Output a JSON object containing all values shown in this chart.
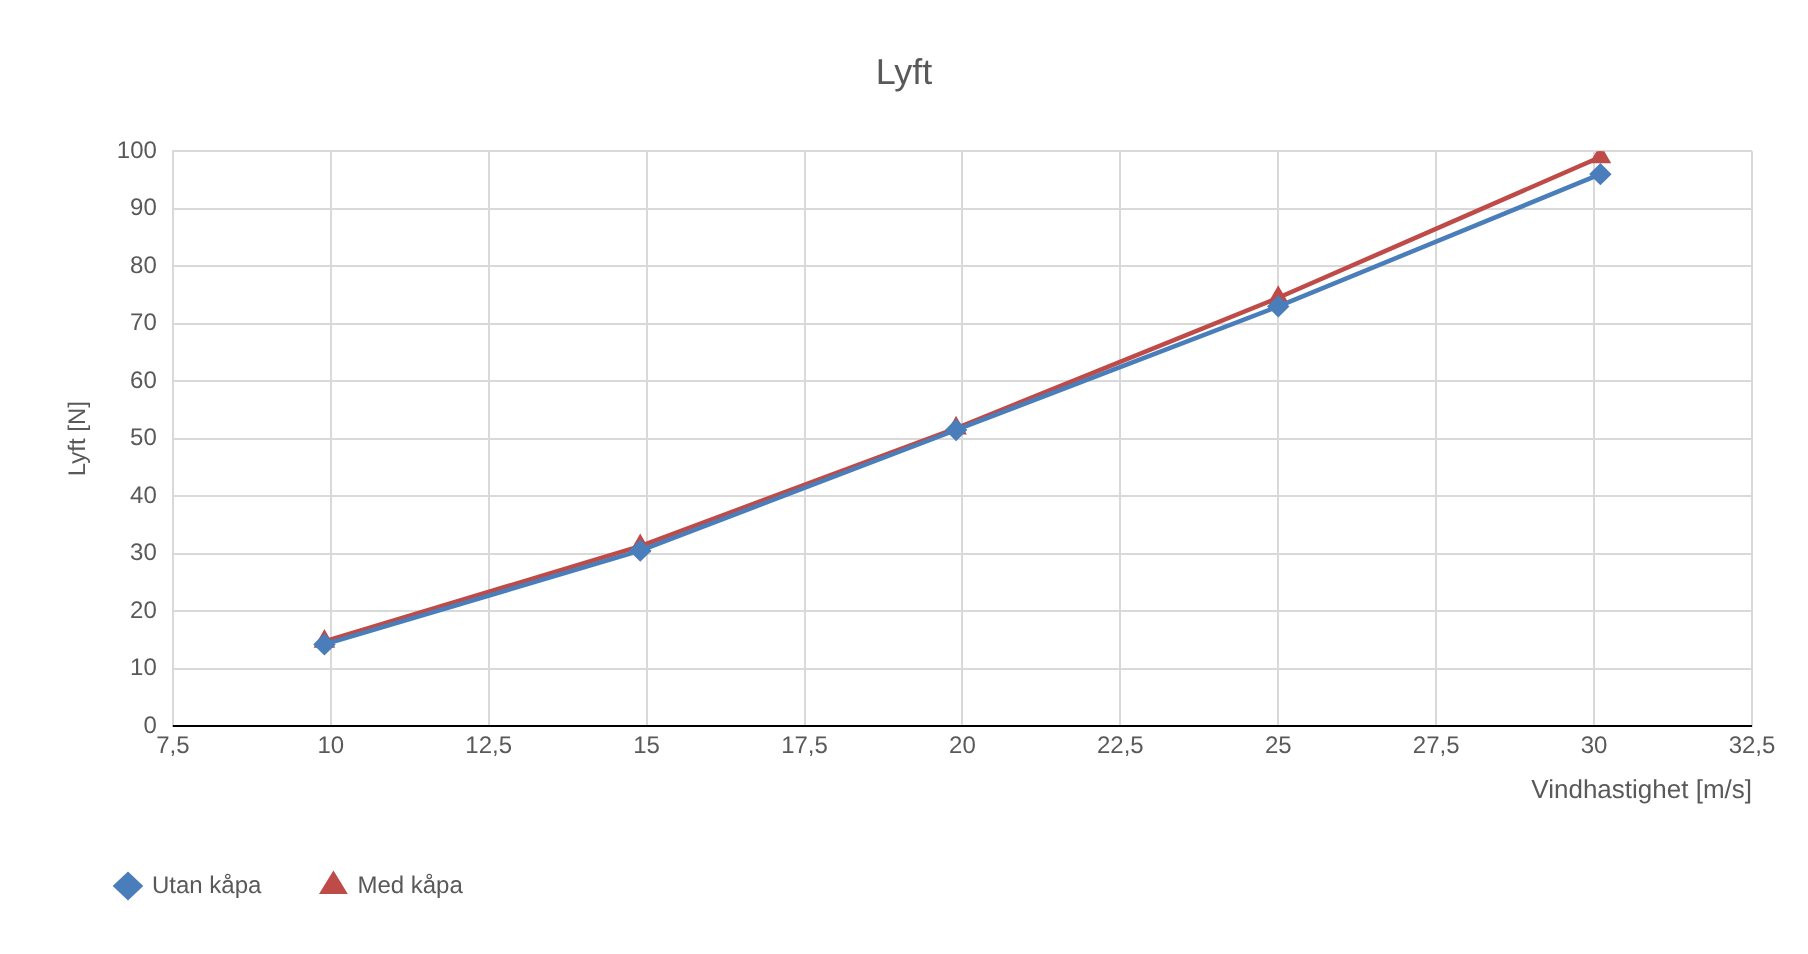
{
  "chart_data": {
    "type": "line",
    "title": "Lyft",
    "xlabel": "Vindhastighet [m/s]",
    "ylabel": "Lyft [N]",
    "x": [
      9.9,
      14.9,
      19.9,
      25,
      30.1
    ],
    "series": [
      {
        "name": "Utan kåpa",
        "color": "#4a7ebb",
        "marker": "diamond",
        "values": [
          14.2,
          30.5,
          51.5,
          73,
          96
        ]
      },
      {
        "name": "Med kåpa",
        "color": "#be4b48",
        "marker": "triangle",
        "values": [
          14.7,
          31.3,
          51.8,
          74.5,
          99
        ]
      }
    ],
    "xlim": [
      7.5,
      32.5
    ],
    "xticks": [
      {
        "value": 7.5,
        "label": "7,5"
      },
      10,
      {
        "value": 12.5,
        "label": "12,5"
      },
      15,
      {
        "value": 17.5,
        "label": "17,5"
      },
      20,
      {
        "value": 22.5,
        "label": "22,5"
      },
      25,
      {
        "value": 27.5,
        "label": "27,5"
      },
      30,
      {
        "value": 32.5,
        "label": "32,5"
      }
    ],
    "ylim": [
      0,
      100
    ],
    "yticks": [
      0,
      10,
      20,
      30,
      40,
      50,
      60,
      70,
      80,
      90,
      100
    ],
    "grid": true,
    "legend": "bottom",
    "line_style": "solid"
  }
}
